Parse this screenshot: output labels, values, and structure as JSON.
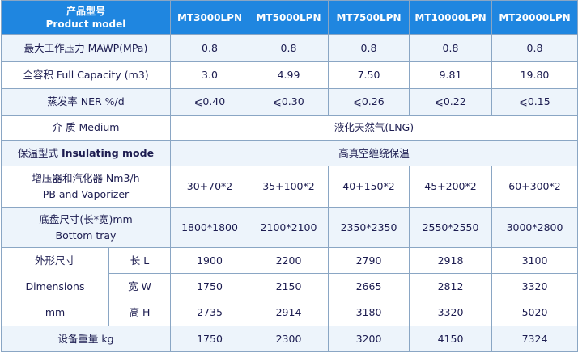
{
  "table": {
    "header": {
      "label": [
        "产品型号",
        "Product model"
      ],
      "models": [
        "MT3000LPN",
        "MT5000LPN",
        "MT7500LPN",
        "MT10000LPN",
        "MT20000LPN"
      ]
    },
    "rows": [
      {
        "label": [
          "最大工作压力 MAWP(MPa)"
        ],
        "values": [
          "0.8",
          "0.8",
          "0.8",
          "0.8",
          "0.8"
        ]
      },
      {
        "label": [
          "全容积 Full Capacity (m3)"
        ],
        "values": [
          "3.0",
          "4.99",
          "7.50",
          "9.81",
          "19.80"
        ]
      },
      {
        "label": [
          "蒸发率 NER   %/d"
        ],
        "values": [
          "⩽0.40",
          "⩽0.30",
          "⩽0.26",
          "⩽0.22",
          "⩽0.15"
        ]
      }
    ],
    "medium": {
      "label": "介 质 Medium",
      "value": "液化天然气(LNG)"
    },
    "insulating": {
      "label": "保温型式 ",
      "label_bold": "Insulating mode",
      "value": "高真空缠绕保温"
    },
    "rows2": [
      {
        "label": [
          "增压器和汽化器 Nm3/h",
          "PB and Vaporizer"
        ],
        "values": [
          "30+70*2",
          "35+100*2",
          "40+150*2",
          "45+200*2",
          "60+300*2"
        ]
      },
      {
        "label": [
          "底盘尺寸(长*宽)mm",
          "Bottom tray"
        ],
        "values": [
          "1800*1800",
          "2100*2100",
          "2350*2350",
          "2550*2550",
          "3000*2800"
        ]
      }
    ],
    "dimensions": {
      "label": [
        "外形尺寸",
        "Dimensions",
        "mm"
      ],
      "rows": [
        {
          "label": "长 L",
          "values": [
            "1900",
            "2200",
            "2790",
            "2918",
            "3100"
          ]
        },
        {
          "label": "宽 W",
          "values": [
            "1750",
            "2150",
            "2665",
            "2812",
            "3320"
          ]
        },
        {
          "label": "高 H",
          "values": [
            "2735",
            "2914",
            "3180",
            "3320",
            "5020"
          ]
        }
      ]
    },
    "weight": {
      "label": "设备重量 kg",
      "values": [
        "1750",
        "2300",
        "3200",
        "4150",
        "7324"
      ]
    }
  }
}
